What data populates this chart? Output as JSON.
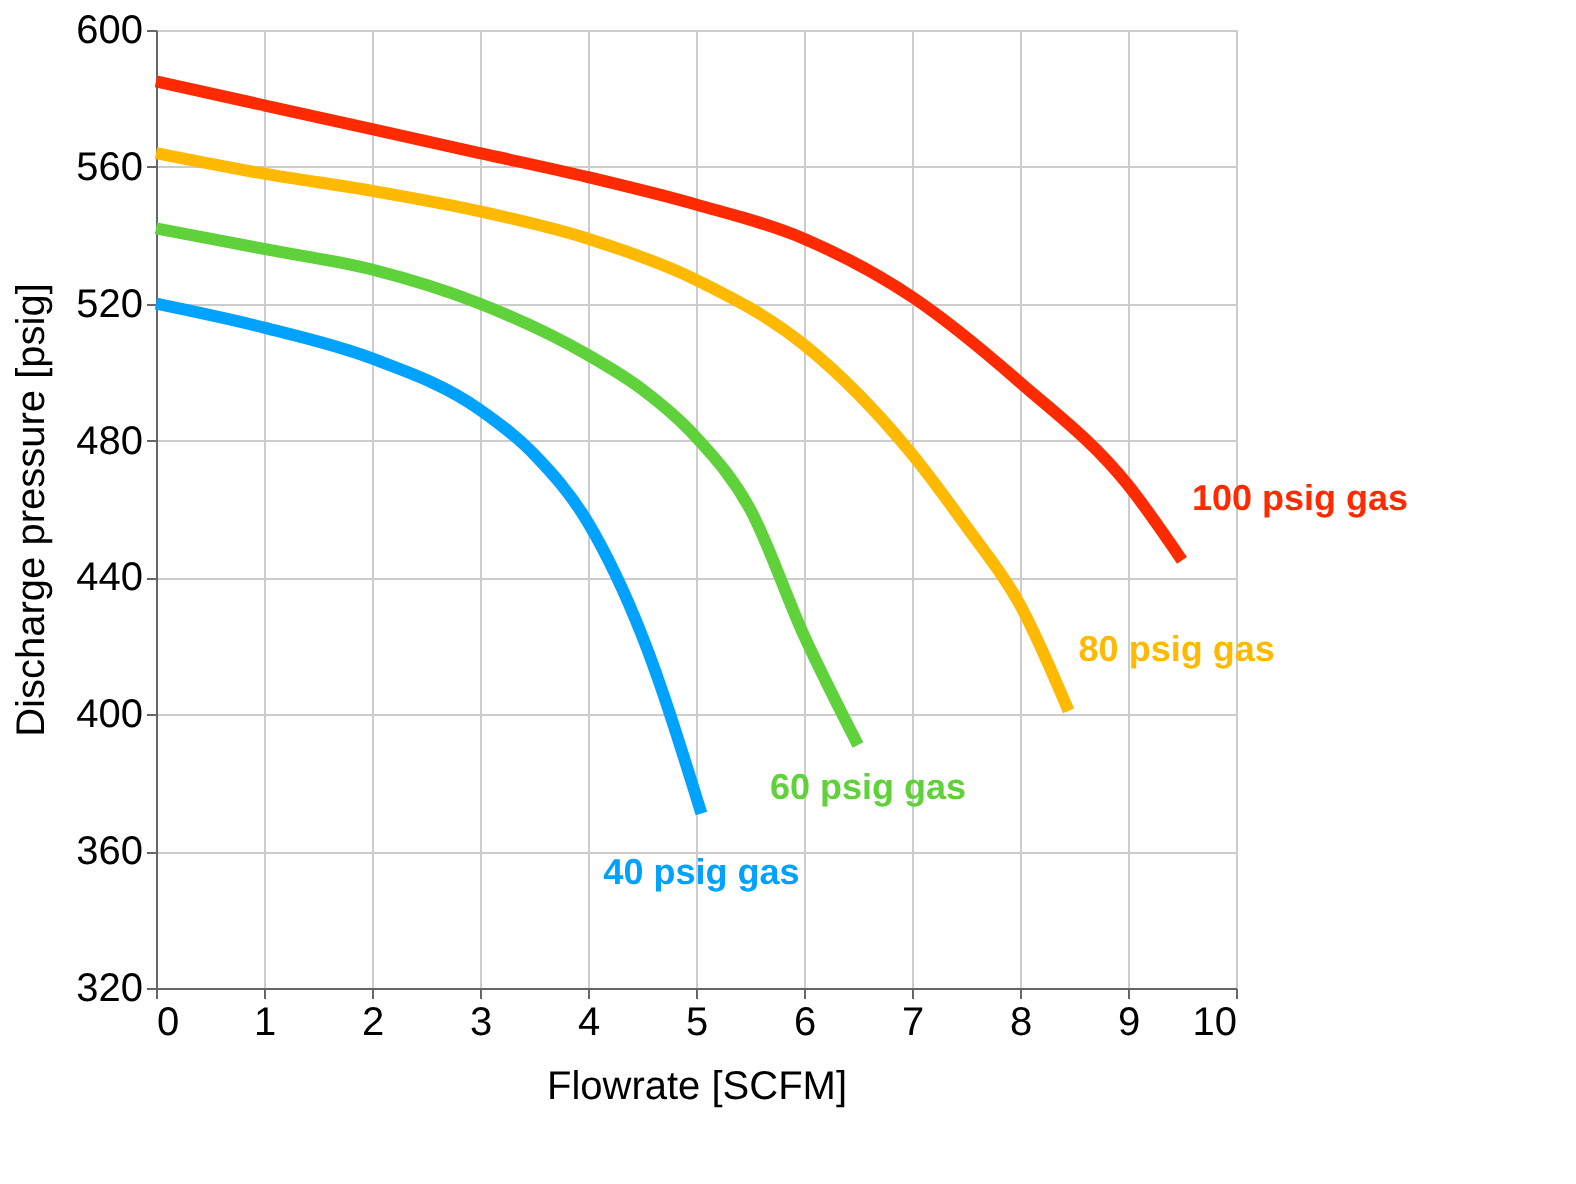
{
  "chart_data": {
    "type": "line",
    "xlabel": "Flowrate [SCFM]",
    "ylabel": "Discharge pressure [psig]",
    "xlim": [
      0,
      10
    ],
    "xticks": [
      0,
      1,
      2,
      3,
      4,
      5,
      6,
      7,
      8,
      9,
      10
    ],
    "ylim": [
      320,
      600
    ],
    "yticks": [
      320,
      360,
      400,
      440,
      480,
      520,
      560,
      600
    ],
    "grid": true,
    "legend": false,
    "marker": "none",
    "line_style": "solid",
    "series": [
      {
        "name": "100 psig gas",
        "color": "#ff2a00",
        "x": [
          0,
          1,
          2,
          3,
          4,
          5,
          6,
          7,
          8,
          9,
          9.5
        ],
        "values": [
          585,
          578,
          571,
          564,
          557,
          549,
          539,
          522,
          497,
          467,
          445
        ]
      },
      {
        "name": "80 psig gas",
        "color": "#ffb900",
        "x": [
          0,
          1,
          2,
          3,
          4,
          5,
          6,
          7,
          7.5,
          8,
          8.45
        ],
        "values": [
          564,
          558,
          553,
          547,
          539,
          527,
          508,
          476,
          455,
          432,
          401
        ]
      },
      {
        "name": "60 psig gas",
        "color": "#5fd13a",
        "x": [
          0,
          1,
          2,
          3,
          4,
          4.5,
          5,
          5.5,
          6,
          6.5
        ],
        "values": [
          542,
          536,
          530,
          520,
          505,
          495,
          481,
          460,
          423,
          391
        ]
      },
      {
        "name": "40 psig gas",
        "color": "#00a2ff",
        "x": [
          0,
          1,
          2,
          3,
          3.5,
          4,
          4.5,
          5.05
        ],
        "values": [
          520,
          513,
          504,
          489,
          476,
          456,
          423,
          371
        ]
      }
    ]
  }
}
